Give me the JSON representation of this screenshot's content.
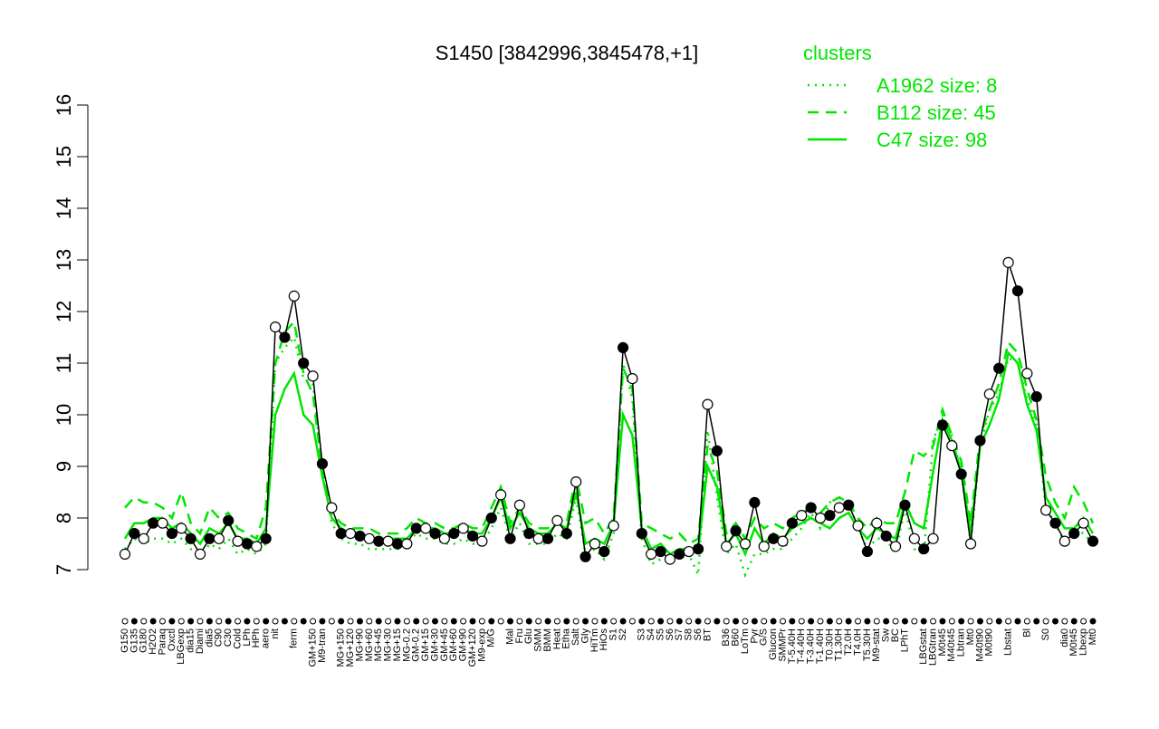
{
  "chart_data": {
    "type": "line",
    "title": "S1450 [3842996,3845478,+1]",
    "legend_title": "clusters",
    "legend_position": "top-right",
    "color": "#000000",
    "ylim": [
      7,
      16
    ],
    "yticks": [
      7,
      8,
      9,
      10,
      11,
      12,
      13,
      14,
      15,
      16
    ],
    "categories": [
      "G150",
      "G135",
      "G180",
      "H2O2",
      "Paraq",
      "Oxctl",
      "LBGexp",
      "dia15",
      "Diami",
      "dia5",
      "C90",
      "C30",
      "Cold",
      "LPh",
      "HPh",
      "aero",
      "nit",
      null,
      "ferm",
      null,
      "GM+150",
      "M9-tran",
      null,
      "MG+150",
      "MG+120",
      "MG+90",
      "MG+60",
      "MG+45",
      "MG+30",
      "MG+15",
      "MG-0.2",
      "GM-0.2",
      "GM+15",
      "GM+30",
      "GM+45",
      "GM+60",
      "GM+90",
      "GM+120",
      "M9-exp",
      "M/G",
      null,
      "Mal",
      "Fru",
      "Glu",
      "SMM",
      "BMM",
      "Heat",
      "Etha",
      "Salt",
      "Gly",
      "HiTm",
      "HiOs",
      "S1",
      "S2",
      null,
      "S3",
      "S4",
      "S5",
      "S6",
      "S7",
      "S8",
      "S6",
      "BT",
      null,
      "B36",
      "B60",
      "LoTm",
      "Pyr",
      "G/S",
      "Glucon",
      "SMMPr",
      "T-5.40H",
      "T-4.40H",
      "T-3.40H",
      "T-1.40H",
      "T0.30H",
      "T1.30H",
      "T2.0H",
      "T4.0H",
      "T5.30H",
      "M9-stat",
      "Sw",
      "BC",
      "LPhT",
      null,
      "LBGstat",
      "LBGtran",
      "M0t45",
      "M40t45",
      "Lbtran",
      "Mt0",
      "M40t90",
      "M0t90",
      null,
      "Lbstat",
      null,
      "Bl",
      null,
      "S0",
      null,
      "dia0",
      "M0t45",
      "Lbexp",
      "Mt0"
    ],
    "values": [
      7.3,
      7.7,
      7.6,
      7.9,
      7.9,
      7.7,
      7.8,
      7.6,
      7.3,
      7.6,
      7.6,
      7.95,
      7.55,
      7.5,
      7.45,
      7.6,
      11.7,
      11.5,
      12.3,
      11.0,
      10.75,
      9.05,
      8.2,
      7.7,
      7.7,
      7.65,
      7.6,
      7.55,
      7.55,
      7.5,
      7.5,
      7.8,
      7.8,
      7.7,
      7.6,
      7.7,
      7.8,
      7.65,
      7.55,
      8.0,
      8.45,
      7.6,
      8.25,
      7.7,
      7.6,
      7.6,
      7.95,
      7.7,
      8.7,
      7.25,
      7.5,
      7.35,
      7.85,
      11.3,
      10.7,
      7.7,
      7.3,
      7.35,
      7.2,
      7.3,
      7.35,
      7.4,
      10.2,
      9.3,
      7.45,
      7.75,
      7.5,
      8.3,
      7.45,
      7.6,
      7.55,
      7.9,
      8.05,
      8.2,
      8.0,
      8.05,
      8.2,
      8.25,
      7.85,
      7.35,
      7.9,
      7.65,
      7.45,
      8.25,
      7.6,
      7.4,
      7.6,
      9.8,
      9.4,
      8.85,
      7.5,
      9.5,
      10.4,
      10.9,
      12.95,
      12.4,
      10.8,
      10.35,
      8.15,
      7.9,
      7.55,
      7.7,
      7.9,
      7.55
    ],
    "series": [
      {
        "name": "A1962 size: 8",
        "color": "#00e600",
        "dash": "dotted",
        "values": [
          7.4,
          7.6,
          7.5,
          7.6,
          7.6,
          7.5,
          7.6,
          7.4,
          7.2,
          7.5,
          7.4,
          7.6,
          7.3,
          7.4,
          7.3,
          7.5,
          11.0,
          11.3,
          11.5,
          10.7,
          10.6,
          8.9,
          7.9,
          7.6,
          7.5,
          7.5,
          7.4,
          7.4,
          7.4,
          7.4,
          7.5,
          7.7,
          7.6,
          7.6,
          7.5,
          7.5,
          7.6,
          7.5,
          7.5,
          7.8,
          8.2,
          7.6,
          7.9,
          7.5,
          7.5,
          7.5,
          7.7,
          7.6,
          8.4,
          7.3,
          7.4,
          7.2,
          7.7,
          11.0,
          10.3,
          7.6,
          7.1,
          7.2,
          7.2,
          7.3,
          7.3,
          6.9,
          9.7,
          8.4,
          7.3,
          7.5,
          6.9,
          7.3,
          7.3,
          7.4,
          7.4,
          7.6,
          7.8,
          8.1,
          7.8,
          8.3,
          8.4,
          8.3,
          7.8,
          7.4,
          7.6,
          7.6,
          7.3,
          8.2,
          7.4,
          7.3,
          9.5,
          10.0,
          9.6,
          8.9,
          7.5,
          9.4,
          10.1,
          10.4,
          11.1,
          11.0,
          10.3,
          9.8,
          8.2,
          7.9,
          7.5,
          7.8,
          7.7,
          7.5
        ]
      },
      {
        "name": "B112 size: 45",
        "color": "#00e600",
        "dash": "dashed",
        "values": [
          8.2,
          8.4,
          8.3,
          8.3,
          8.2,
          8.0,
          8.5,
          7.9,
          7.7,
          8.2,
          8.0,
          8.1,
          7.8,
          7.7,
          7.6,
          8.2,
          11.0,
          11.6,
          11.8,
          10.8,
          10.4,
          8.9,
          8.1,
          7.9,
          7.8,
          7.8,
          7.8,
          7.7,
          7.7,
          7.7,
          7.8,
          8.0,
          7.9,
          7.9,
          7.8,
          7.8,
          7.9,
          7.8,
          7.8,
          8.2,
          8.6,
          7.9,
          8.2,
          7.9,
          7.8,
          7.8,
          8.0,
          7.9,
          8.8,
          7.9,
          8.0,
          7.7,
          8.0,
          10.9,
          10.5,
          7.9,
          7.8,
          7.7,
          7.6,
          7.7,
          7.5,
          7.6,
          9.4,
          8.9,
          7.7,
          7.9,
          7.6,
          8.0,
          7.8,
          7.9,
          7.8,
          8.0,
          8.1,
          8.2,
          8.1,
          8.3,
          8.4,
          8.3,
          8.0,
          7.8,
          8.0,
          7.9,
          7.9,
          8.5,
          9.3,
          9.2,
          9.4,
          10.1,
          9.6,
          9.1,
          7.9,
          9.6,
          10.1,
          10.6,
          11.4,
          11.2,
          10.5,
          9.9,
          8.8,
          8.3,
          8.0,
          8.6,
          8.3,
          7.9
        ]
      },
      {
        "name": "C47 size: 98",
        "color": "#00e600",
        "dash": "solid",
        "values": [
          7.6,
          7.9,
          7.9,
          8.0,
          8.0,
          7.8,
          7.9,
          7.7,
          7.5,
          7.8,
          7.7,
          7.9,
          7.6,
          7.6,
          7.5,
          7.8,
          10.0,
          10.5,
          10.8,
          10.0,
          9.8,
          8.8,
          8.0,
          7.8,
          7.7,
          7.7,
          7.6,
          7.6,
          7.6,
          7.6,
          7.6,
          7.8,
          7.8,
          7.8,
          7.7,
          7.7,
          7.8,
          7.7,
          7.7,
          8.0,
          8.4,
          7.8,
          8.1,
          7.8,
          7.7,
          7.7,
          7.9,
          7.8,
          8.5,
          7.5,
          7.6,
          7.5,
          7.9,
          10.0,
          9.6,
          7.8,
          7.4,
          7.5,
          7.3,
          7.4,
          7.4,
          7.4,
          9.0,
          8.6,
          7.5,
          7.7,
          7.3,
          7.8,
          7.5,
          7.7,
          7.6,
          7.8,
          7.9,
          8.0,
          7.9,
          7.8,
          8.0,
          8.1,
          7.8,
          7.6,
          7.8,
          7.7,
          7.6,
          8.3,
          7.9,
          7.8,
          8.9,
          9.9,
          9.5,
          8.9,
          7.7,
          9.4,
          9.8,
          10.3,
          11.2,
          11.0,
          10.2,
          9.7,
          8.4,
          8.1,
          7.8,
          7.8,
          8.0,
          7.7
        ]
      }
    ]
  }
}
